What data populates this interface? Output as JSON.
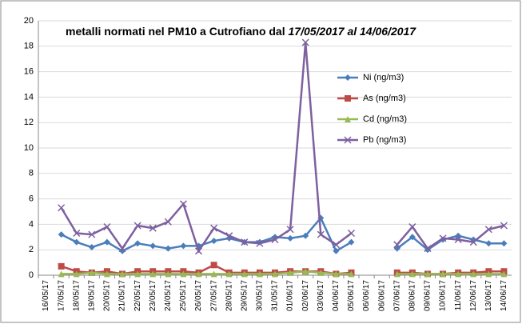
{
  "chart_data": {
    "type": "line",
    "title": "metalli normati nel PM10 a Cutrofiano dal ",
    "title_italic": "17/05/2017 al 14/06/2017",
    "categories": [
      "16/05/17",
      "17/05/17",
      "18/05/17",
      "19/05/17",
      "20/05/17",
      "21/05/17",
      "22/05/17",
      "23/05/17",
      "24/05/17",
      "25/05/17",
      "26/05/17",
      "27/05/17",
      "28/05/17",
      "29/05/17",
      "30/05/17",
      "31/05/17",
      "01/06/17",
      "02/06/17",
      "03/06/17",
      "04/06/17",
      "05/06/17",
      "06/06/17",
      "06/06/17",
      "07/06/17",
      "08/06/17",
      "09/06/17",
      "10/06/17",
      "11/06/17",
      "12/06/17",
      "13/06/17",
      "14/06/17"
    ],
    "series": [
      {
        "name": "Ni  (ng/m3)",
        "color": "#4a7ebb",
        "marker": "diamond",
        "values": [
          null,
          3.2,
          2.6,
          2.2,
          2.6,
          1.9,
          2.5,
          2.3,
          2.1,
          2.3,
          2.3,
          2.7,
          2.9,
          2.6,
          2.6,
          3.0,
          2.9,
          3.1,
          4.5,
          1.9,
          2.6,
          null,
          null,
          2.1,
          3.0,
          2.0,
          2.8,
          3.1,
          2.8,
          2.5,
          2.5
        ]
      },
      {
        "name": "As  (ng/m3)",
        "color": "#be4b48",
        "marker": "square",
        "values": [
          null,
          0.7,
          0.3,
          0.2,
          0.3,
          0.1,
          0.3,
          0.3,
          0.3,
          0.3,
          0.2,
          0.8,
          0.2,
          0.2,
          0.2,
          0.2,
          0.3,
          0.3,
          0.3,
          0.1,
          0.2,
          null,
          null,
          0.2,
          0.2,
          0.1,
          0.1,
          0.2,
          0.2,
          0.3,
          0.3
        ]
      },
      {
        "name": "Cd  (ng/m3)",
        "color": "#98b954",
        "marker": "triangle",
        "values": [
          null,
          0.1,
          0.1,
          0.2,
          0.1,
          0.1,
          0.1,
          0.1,
          0.1,
          0.1,
          0.1,
          0.1,
          0.1,
          0.1,
          0.1,
          0.1,
          0.2,
          0.3,
          0.2,
          0.1,
          0.1,
          null,
          null,
          0.1,
          0.1,
          0.1,
          0.1,
          0.1,
          0.1,
          0.1,
          0.1
        ]
      },
      {
        "name": "Pb (ng/m3)",
        "color": "#7d60a0",
        "marker": "x",
        "values": [
          null,
          5.3,
          3.3,
          3.2,
          3.8,
          2.1,
          3.9,
          3.7,
          4.2,
          5.6,
          1.9,
          3.7,
          3.1,
          2.6,
          2.5,
          2.8,
          3.6,
          18.3,
          3.2,
          2.4,
          3.3,
          null,
          null,
          2.4,
          3.8,
          2.1,
          2.9,
          2.8,
          2.6,
          3.6,
          3.9
        ]
      }
    ],
    "ylim": [
      0,
      20
    ],
    "yticks": [
      0,
      2,
      4,
      6,
      8,
      10,
      12,
      14,
      16,
      18,
      20
    ],
    "grid": true
  }
}
